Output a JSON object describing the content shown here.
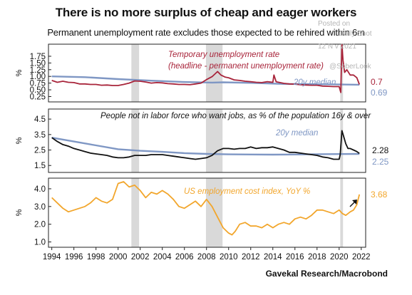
{
  "title": "There is no more surplus of cheap and eager workers",
  "subtitle": "Permanent unemployment rate excludes those expected to be rehired within 6m",
  "source": "Gavekal Research/Macrobond",
  "watermark": {
    "line1": "Posted on",
    "line2": "Daily Shot",
    "line3": "12 N v 2021",
    "line4": "@SoberLook"
  },
  "colors": {
    "red": "#a8243a",
    "blue": "#7f97c4",
    "black": "#111111",
    "orange": "#f2a62c",
    "recession": "#d9d9d9"
  },
  "chart_data": [
    {
      "type": "line",
      "ylabel": "%",
      "ylim": [
        0.05,
        2.2
      ],
      "yticks": [
        "1.75",
        "1.50",
        "1.25",
        "1.00",
        "0.75",
        "0.50",
        "0.25"
      ],
      "ytick_values": [
        1.75,
        1.5,
        1.25,
        1.0,
        0.75,
        0.5,
        0.25
      ],
      "annotations": [
        "Temporary unemployment rate",
        "(headline - permanent unemployment rate)",
        "20y median"
      ],
      "last_values": [
        "0.7",
        "0.69"
      ],
      "series": [
        {
          "name": "Temporary unemployment rate",
          "color": "#a8243a",
          "x": [
            1994.0,
            1994.5,
            1995.0,
            1995.5,
            1996.0,
            1996.5,
            1997.0,
            1997.5,
            1998.0,
            1998.5,
            1999.0,
            1999.5,
            2000.0,
            2000.5,
            2001.0,
            2001.5,
            2002.0,
            2002.5,
            2003.0,
            2003.5,
            2004.0,
            2004.5,
            2005.0,
            2005.5,
            2006.0,
            2006.5,
            2007.0,
            2007.5,
            2008.0,
            2008.5,
            2009.0,
            2009.3,
            2009.7,
            2010.0,
            2010.5,
            2011.0,
            2011.5,
            2012.0,
            2012.5,
            2013.0,
            2013.5,
            2014.0,
            2014.1,
            2014.3,
            2015.0,
            2015.5,
            2016.0,
            2016.5,
            2017.0,
            2017.5,
            2018.0,
            2018.5,
            2019.0,
            2019.5,
            2020.0,
            2020.15,
            2020.25,
            2020.35,
            2020.5,
            2020.7,
            2021.0,
            2021.3,
            2021.6,
            2021.83
          ],
          "values": [
            0.85,
            0.78,
            0.82,
            0.78,
            0.77,
            0.72,
            0.72,
            0.7,
            0.7,
            0.67,
            0.68,
            0.66,
            0.66,
            0.7,
            0.75,
            0.83,
            0.82,
            0.79,
            0.75,
            0.77,
            0.76,
            0.73,
            0.72,
            0.7,
            0.7,
            0.69,
            0.72,
            0.75,
            0.88,
            0.99,
            1.18,
            1.05,
            0.97,
            0.95,
            0.87,
            0.85,
            0.82,
            0.8,
            0.78,
            0.77,
            0.8,
            0.78,
            1.05,
            0.8,
            0.74,
            0.72,
            0.71,
            0.69,
            0.68,
            0.67,
            0.67,
            0.64,
            0.63,
            0.62,
            0.62,
            0.4,
            2.2,
            1.6,
            1.15,
            1.25,
            1.05,
            1.05,
            0.95,
            0.7
          ]
        },
        {
          "name": "20y median",
          "color": "#7f97c4",
          "x": [
            1994.0,
            1997.0,
            2000.0,
            2003.0,
            2006.0,
            2008.5,
            2009.5,
            2012.0,
            2015.0,
            2018.0,
            2021.83
          ],
          "values": [
            1.0,
            0.97,
            0.9,
            0.84,
            0.79,
            0.77,
            0.78,
            0.76,
            0.72,
            0.71,
            0.69
          ]
        }
      ]
    },
    {
      "type": "line",
      "ylabel": "%",
      "ylim": [
        1.05,
        5.15
      ],
      "yticks": [
        "4.5",
        "3.5",
        "2.5",
        "1.5"
      ],
      "ytick_values": [
        4.5,
        3.5,
        2.5,
        1.5
      ],
      "annotations": [
        "People not in labor force who want jobs, as % of the population 16y & over",
        "20y median"
      ],
      "last_values": [
        "2.28",
        "2.25"
      ],
      "series": [
        {
          "name": "People not in labor force who want jobs",
          "color": "#111111",
          "x": [
            1994.0,
            1994.5,
            1995.0,
            1995.5,
            1996.0,
            1996.5,
            1997.0,
            1997.5,
            1998.0,
            1998.5,
            1999.0,
            1999.5,
            2000.0,
            2000.5,
            2001.0,
            2001.5,
            2002.0,
            2002.5,
            2003.0,
            2003.5,
            2004.0,
            2004.5,
            2005.0,
            2005.5,
            2006.0,
            2006.5,
            2007.0,
            2007.5,
            2008.0,
            2008.5,
            2009.0,
            2009.5,
            2010.0,
            2010.5,
            2011.0,
            2011.5,
            2012.0,
            2012.5,
            2013.0,
            2013.5,
            2014.0,
            2014.5,
            2015.0,
            2015.5,
            2016.0,
            2016.5,
            2017.0,
            2017.5,
            2018.0,
            2018.5,
            2019.0,
            2019.5,
            2020.0,
            2020.1,
            2020.25,
            2020.4,
            2020.6,
            2020.8,
            2021.0,
            2021.3,
            2021.6,
            2021.83
          ],
          "values": [
            3.3,
            3.05,
            2.85,
            2.75,
            2.6,
            2.5,
            2.4,
            2.3,
            2.25,
            2.2,
            2.15,
            2.05,
            2.0,
            2.0,
            2.05,
            2.15,
            2.15,
            2.15,
            2.2,
            2.2,
            2.2,
            2.15,
            2.1,
            2.05,
            2.0,
            1.95,
            1.9,
            1.95,
            2.0,
            2.15,
            2.45,
            2.6,
            2.6,
            2.55,
            2.6,
            2.6,
            2.7,
            2.6,
            2.65,
            2.65,
            2.7,
            2.6,
            2.5,
            2.35,
            2.35,
            2.3,
            2.25,
            2.2,
            2.15,
            2.05,
            2.0,
            1.9,
            1.9,
            2.2,
            3.75,
            3.4,
            2.9,
            2.6,
            2.6,
            2.5,
            2.4,
            2.28
          ]
        },
        {
          "name": "20y median",
          "color": "#7f97c4",
          "x": [
            1994.0,
            1996.0,
            1998.0,
            2000.0,
            2002.0,
            2004.0,
            2006.0,
            2008.0,
            2010.0,
            2012.0,
            2014.0,
            2016.0,
            2018.0,
            2020.0,
            2021.83
          ],
          "values": [
            3.3,
            3.05,
            2.8,
            2.55,
            2.45,
            2.38,
            2.3,
            2.25,
            2.22,
            2.21,
            2.2,
            2.21,
            2.23,
            2.24,
            2.25
          ]
        }
      ]
    },
    {
      "type": "line",
      "ylabel": "%",
      "ylim": [
        0.7,
        4.6
      ],
      "yticks": [
        "4.0",
        "3.0",
        "2.0",
        "1.0"
      ],
      "ytick_values": [
        4.0,
        3.0,
        2.0,
        1.0
      ],
      "annotations": [
        "US employment cost index, YoY %"
      ],
      "last_values": [
        "3.68"
      ],
      "series": [
        {
          "name": "US employment cost index, YoY %",
          "color": "#f2a62c",
          "x": [
            1994.0,
            1994.5,
            1995.0,
            1995.5,
            1996.0,
            1996.5,
            1997.0,
            1997.5,
            1998.0,
            1998.5,
            1999.0,
            1999.5,
            2000.0,
            2000.5,
            2001.0,
            2001.5,
            2002.0,
            2002.5,
            2003.0,
            2003.5,
            2004.0,
            2004.5,
            2005.0,
            2005.5,
            2006.0,
            2006.5,
            2007.0,
            2007.5,
            2008.0,
            2008.5,
            2009.0,
            2009.5,
            2010.0,
            2010.3,
            2010.6,
            2011.0,
            2011.5,
            2012.0,
            2012.5,
            2013.0,
            2013.5,
            2014.0,
            2014.5,
            2015.0,
            2015.5,
            2016.0,
            2016.5,
            2017.0,
            2017.5,
            2018.0,
            2018.5,
            2019.0,
            2019.5,
            2020.0,
            2020.3,
            2020.6,
            2021.0,
            2021.3,
            2021.6,
            2021.83
          ],
          "values": [
            3.5,
            3.2,
            2.9,
            2.7,
            2.8,
            2.9,
            3.0,
            3.2,
            3.5,
            3.3,
            3.2,
            3.4,
            4.3,
            4.4,
            4.1,
            4.2,
            3.9,
            3.5,
            3.8,
            3.7,
            3.9,
            3.7,
            3.4,
            3.0,
            2.9,
            3.1,
            3.3,
            3.0,
            3.4,
            3.0,
            2.4,
            1.8,
            1.5,
            1.4,
            1.6,
            2.0,
            2.1,
            1.9,
            1.9,
            1.8,
            2.0,
            1.8,
            2.0,
            2.1,
            2.0,
            2.3,
            2.4,
            2.3,
            2.5,
            2.8,
            2.8,
            2.7,
            2.6,
            2.8,
            2.6,
            2.5,
            2.7,
            2.8,
            3.1,
            3.68
          ]
        }
      ]
    },
    {
      "type": "axis",
      "xlim": [
        1993.7,
        2022.4
      ],
      "xticks": [
        "1994",
        "1996",
        "1998",
        "2000",
        "2002",
        "2004",
        "2006",
        "2008",
        "2010",
        "2012",
        "2014",
        "2016",
        "2018",
        "2020",
        "2022"
      ],
      "xtick_values": [
        1994,
        1996,
        1998,
        2000,
        2002,
        2004,
        2006,
        2008,
        2010,
        2012,
        2014,
        2016,
        2018,
        2020,
        2022
      ],
      "recessions": [
        [
          2001.2,
          2001.9
        ],
        [
          2007.95,
          2009.45
        ],
        [
          2020.1,
          2020.35
        ]
      ]
    }
  ]
}
